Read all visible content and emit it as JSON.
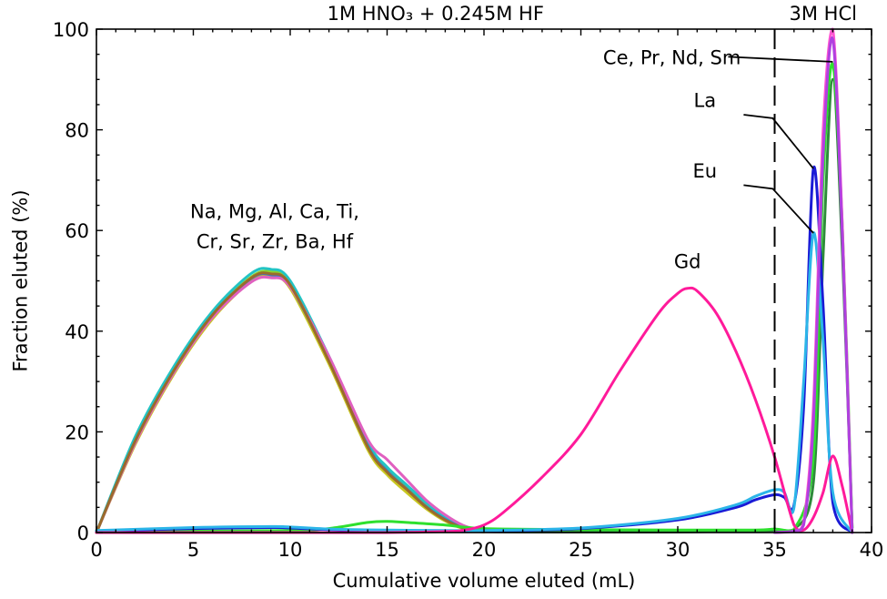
{
  "chart_data": {
    "type": "line",
    "xlabel": "Cumulative volume eluted (mL)",
    "ylabel": "Fraction eluted (%)",
    "xlim": [
      0,
      40
    ],
    "ylim": [
      0,
      100
    ],
    "xticks": [
      0,
      5,
      10,
      15,
      20,
      25,
      30,
      35,
      40
    ],
    "yticks": [
      0,
      20,
      40,
      60,
      80,
      100
    ],
    "grid": false,
    "legend": "none",
    "divider_x": 35,
    "regions": [
      {
        "label": "1M HNO₃ + 0.245M HF",
        "x": 17.5
      },
      {
        "label": "3M HCl",
        "x": 37.5
      }
    ],
    "annotations": [
      {
        "text": "Na, Mg, Al, Ca, Ti,",
        "x": 9.2,
        "y": 62.5
      },
      {
        "text": "Cr, Sr, Zr, Ba, Hf",
        "x": 9.2,
        "y": 56.5
      },
      {
        "text": "Gd",
        "x": 30.5,
        "y": 52.5
      },
      {
        "text": "La",
        "x": 31.4,
        "y": 84.5,
        "leader": [
          [
            33.4,
            83
          ],
          [
            34.9,
            82.3
          ],
          [
            37.0,
            72.3
          ]
        ]
      },
      {
        "text": "Eu",
        "x": 31.4,
        "y": 70.5,
        "leader": [
          [
            33.4,
            69
          ],
          [
            34.9,
            68.3
          ],
          [
            37.0,
            59.5
          ]
        ]
      },
      {
        "text": "Ce, Pr, Nd, Sm",
        "x": 29.7,
        "y": 93,
        "leader": [
          [
            32.6,
            94.5
          ],
          [
            38.0,
            93.5
          ]
        ]
      }
    ],
    "series": [
      {
        "color": "#2e8b3a",
        "x": [
          0,
          2,
          4,
          6,
          8,
          9,
          10,
          12,
          14,
          15,
          16,
          17,
          18,
          19,
          20,
          25,
          30,
          35,
          36,
          37,
          37.5,
          38,
          38.5,
          39
        ],
        "y": [
          0,
          18,
          32,
          43,
          50,
          51.5,
          49,
          34,
          17,
          12,
          8.5,
          5,
          2.5,
          0.8,
          0.2,
          0.1,
          0.1,
          0.4,
          0.6,
          10,
          55,
          90,
          55,
          1
        ]
      },
      {
        "color": "#8cd12f",
        "x": [
          0,
          2,
          4,
          6,
          8,
          9,
          10,
          12,
          14,
          15,
          16,
          17,
          18,
          19,
          20
        ],
        "y": [
          0,
          18.5,
          32.5,
          43.5,
          50.8,
          51.8,
          49.5,
          34.5,
          17.5,
          12.5,
          9,
          5.5,
          2.7,
          1,
          0.2
        ]
      },
      {
        "color": "#22c4c4",
        "x": [
          0,
          2,
          4,
          6,
          8,
          9,
          10,
          12,
          14,
          15,
          16,
          17,
          18,
          19,
          20
        ],
        "y": [
          0,
          19,
          33,
          44,
          51.5,
          52.3,
          50,
          35,
          18,
          13,
          9.5,
          6,
          3,
          1.2,
          0.3
        ]
      },
      {
        "color": "#c8c820",
        "x": [
          0,
          2,
          4,
          6,
          8,
          9,
          10,
          12,
          14,
          15,
          16,
          17,
          18,
          19,
          20
        ],
        "y": [
          0,
          17.5,
          31.5,
          42.5,
          50,
          51,
          48.5,
          33.5,
          16.5,
          11.5,
          8,
          4.8,
          2.3,
          0.7,
          0.1
        ]
      },
      {
        "color": "#3b6fd6",
        "x": [
          0,
          2,
          4,
          6,
          8,
          9,
          10,
          12,
          14,
          15,
          16,
          17,
          18,
          19,
          20
        ],
        "y": [
          0,
          18,
          32,
          43.2,
          50.5,
          51.2,
          49,
          34.2,
          17.2,
          12.2,
          8.7,
          5.2,
          2.6,
          0.9,
          0.2
        ]
      },
      {
        "color": "#e060c0",
        "x": [
          0,
          2,
          4,
          6,
          8,
          9,
          10,
          12,
          14,
          15,
          16,
          17,
          18,
          19,
          20
        ],
        "y": [
          0,
          17.8,
          31.8,
          42.8,
          49.8,
          50.6,
          48.8,
          35,
          18.5,
          14.5,
          10.5,
          6.5,
          3.5,
          1.3,
          0.3
        ]
      },
      {
        "color": "#9a6b2c",
        "x": [
          0,
          2,
          4,
          6,
          8,
          9,
          10,
          12,
          14,
          15,
          16,
          17,
          18,
          19,
          20
        ],
        "y": [
          0,
          18.2,
          32.2,
          43.3,
          50.6,
          51.4,
          49.2,
          34,
          17,
          12,
          8.6,
          5.1,
          2.5,
          0.8,
          0.2
        ]
      },
      {
        "color": "#2ee02e",
        "x": [
          0,
          5,
          10,
          12,
          14,
          15,
          16,
          18,
          20,
          25,
          30,
          34,
          35,
          36,
          37,
          37.5,
          38,
          38.5,
          39
        ],
        "y": [
          0.2,
          0.3,
          0.4,
          0.8,
          2,
          2.2,
          2,
          1.5,
          0.8,
          0.6,
          0.5,
          0.5,
          0.7,
          0.6,
          15,
          70,
          93,
          60,
          1
        ]
      },
      {
        "color": "#1a1ad6",
        "x": [
          0,
          5,
          9,
          10,
          12,
          15,
          18,
          19,
          20,
          25,
          30,
          33,
          34,
          35,
          35.5,
          36,
          36.5,
          37,
          37.5,
          38,
          39
        ],
        "y": [
          0.3,
          0.8,
          1,
          0.9,
          0.6,
          0.4,
          0.3,
          0.3,
          0.3,
          0.8,
          2.5,
          5,
          6.5,
          7.5,
          7,
          5.5,
          25,
          72.3,
          45,
          6,
          0
        ]
      },
      {
        "color": "#2cb5e8",
        "x": [
          0,
          5,
          9,
          10,
          12,
          15,
          18,
          19,
          20,
          25,
          30,
          33,
          34,
          35,
          35.5,
          36,
          36.5,
          37,
          37.5,
          38,
          39
        ],
        "y": [
          0.4,
          1,
          1.2,
          1.1,
          0.7,
          0.5,
          0.4,
          0.4,
          0.4,
          0.9,
          2.8,
          5.5,
          7.2,
          8.5,
          8,
          5,
          30,
          59.5,
          38,
          8,
          0
        ]
      },
      {
        "color": "#ff1a9a",
        "x": [
          0,
          10,
          15,
          18,
          19,
          20,
          21,
          23,
          25,
          27,
          29,
          30,
          30.5,
          31,
          32,
          33,
          34,
          35,
          36,
          36.5,
          37,
          37.5,
          38,
          38.5,
          39
        ],
        "y": [
          0,
          0,
          0,
          0.2,
          0.5,
          1.5,
          4,
          11,
          19.5,
          32,
          43.5,
          47.5,
          48.5,
          48,
          43.5,
          36,
          26.5,
          15,
          1.5,
          0.5,
          3,
          8,
          15.2,
          9,
          0
        ]
      },
      {
        "color": "#ff55d2",
        "x": [
          35,
          36,
          36.5,
          37,
          37.5,
          38,
          38.5,
          39
        ],
        "y": [
          0,
          0.3,
          2,
          25,
          80,
          100,
          60,
          0
        ]
      },
      {
        "color": "#b040e0",
        "x": [
          35,
          36,
          36.5,
          37,
          37.5,
          38,
          38.5,
          39
        ],
        "y": [
          0,
          0.3,
          1.5,
          22,
          75,
          98,
          58,
          0
        ]
      }
    ]
  }
}
